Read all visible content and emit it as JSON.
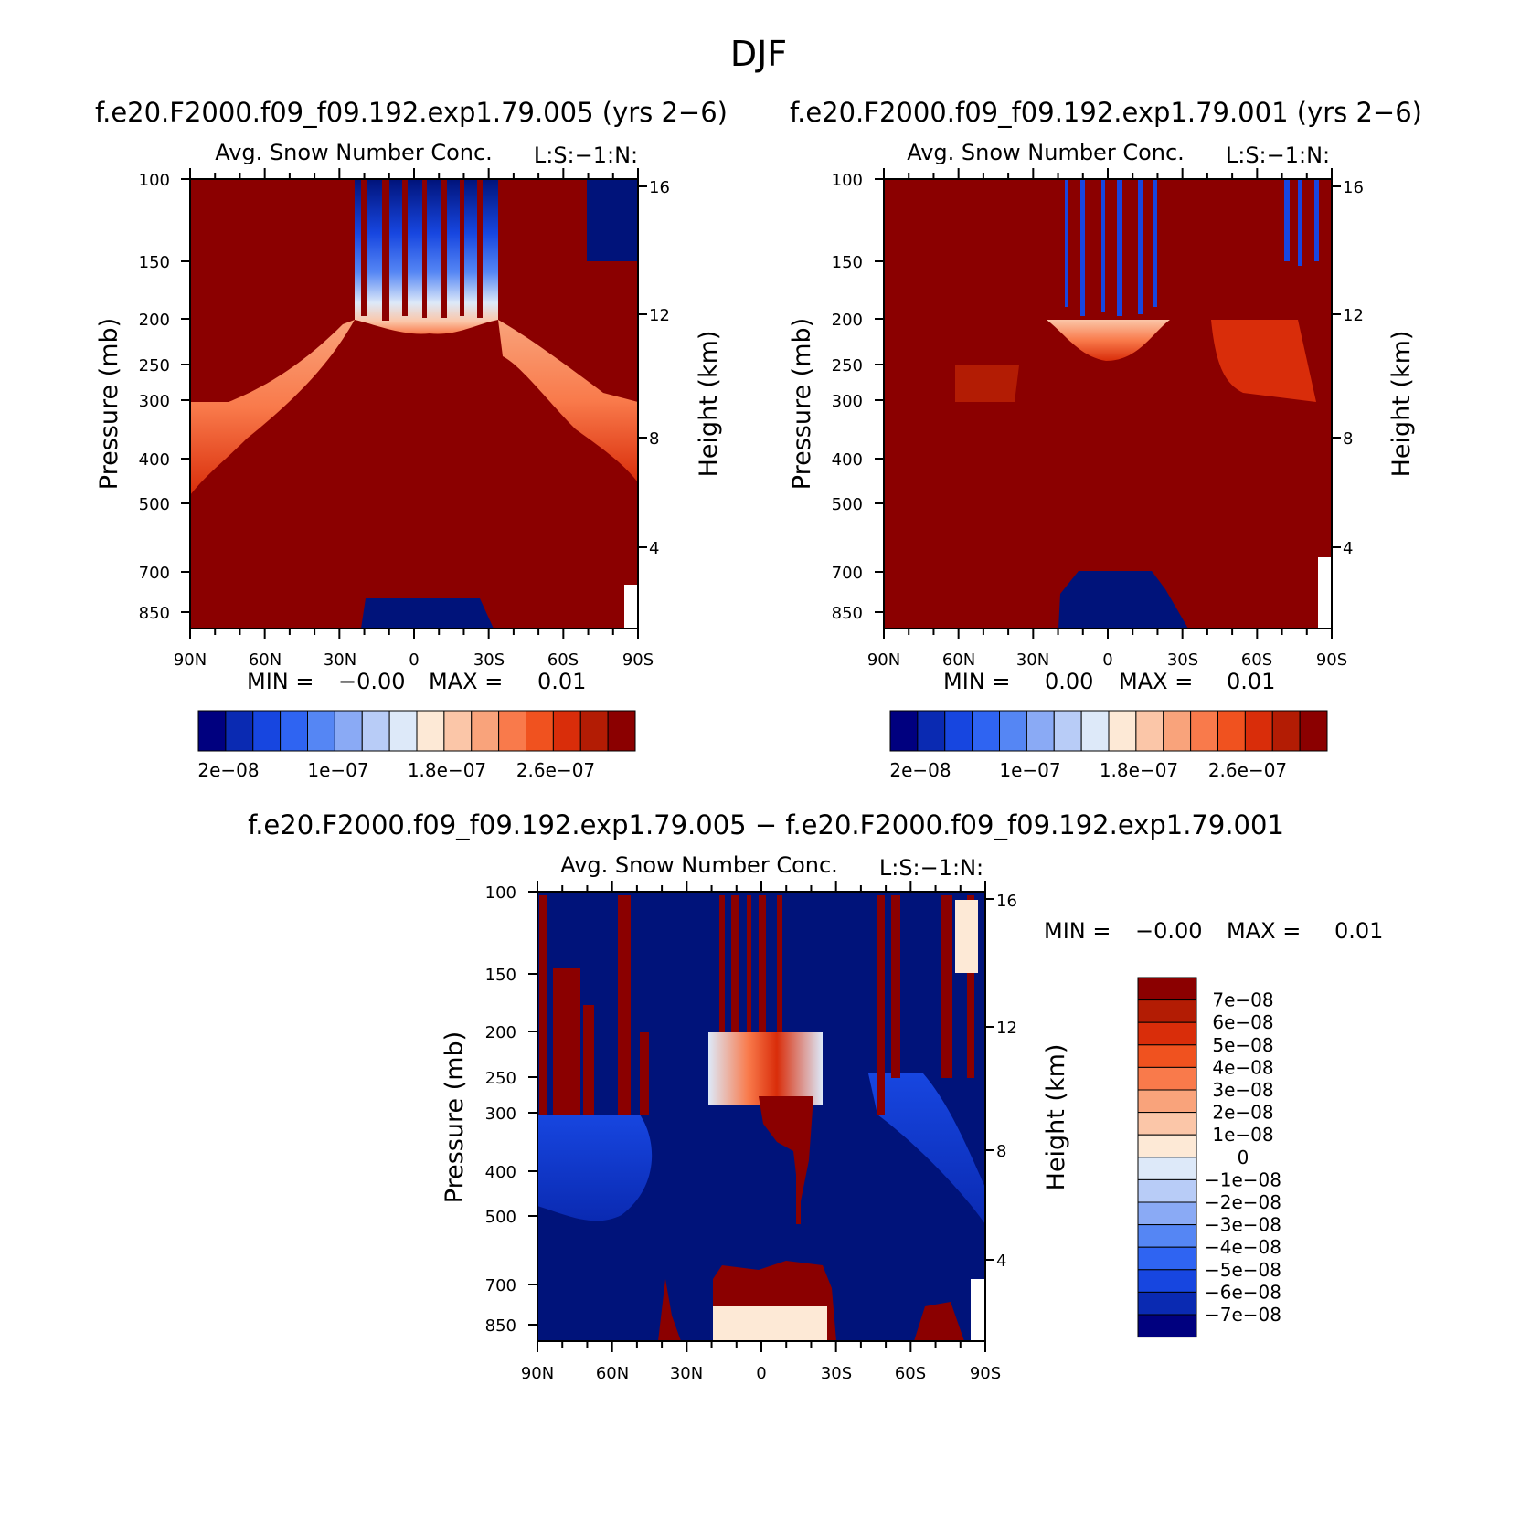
{
  "figure_title": "DJF",
  "chart_data": [
    {
      "type": "heatmap",
      "run_title": "f.e20.F2000.f09_f09.192.exp1.79.005 (yrs 2−6)",
      "title": "Avg. Snow Number Conc.",
      "units_label": "L:S:−1:N:",
      "ylabel": "Pressure (mb)",
      "y2label": "Height (km)",
      "x_ticks": [
        "90N",
        "60N",
        "30N",
        "0",
        "30S",
        "60S",
        "90S"
      ],
      "y_ticks": [
        "100",
        "150",
        "200",
        "250",
        "300",
        "400",
        "500",
        "700",
        "850"
      ],
      "y2_ticks": [
        "16",
        "12",
        "8",
        "4"
      ],
      "min_label": "MIN =",
      "min_value": "−0.00",
      "max_label": "MAX =",
      "max_value": "0.01",
      "colorbar_labels": [
        "2e−08",
        "1e−07",
        "1.8e−07",
        "2.6e−07"
      ]
    },
    {
      "type": "heatmap",
      "run_title": "f.e20.F2000.f09_f09.192.exp1.79.001 (yrs 2−6)",
      "title": "Avg. Snow Number Conc.",
      "units_label": "L:S:−1:N:",
      "ylabel": "Pressure (mb)",
      "y2label": "Height (km)",
      "x_ticks": [
        "90N",
        "60N",
        "30N",
        "0",
        "30S",
        "60S",
        "90S"
      ],
      "y_ticks": [
        "100",
        "150",
        "200",
        "250",
        "300",
        "400",
        "500",
        "700",
        "850"
      ],
      "y2_ticks": [
        "16",
        "12",
        "8",
        "4"
      ],
      "min_label": "MIN =",
      "min_value": "0.00",
      "max_label": "MAX =",
      "max_value": "0.01",
      "colorbar_labels": [
        "2e−08",
        "1e−07",
        "1.8e−07",
        "2.6e−07"
      ]
    },
    {
      "type": "heatmap",
      "run_title": "f.e20.F2000.f09_f09.192.exp1.79.005 − f.e20.F2000.f09_f09.192.exp1.79.001",
      "title": "Avg. Snow Number Conc.",
      "units_label": "L:S:−1:N:",
      "ylabel": "Pressure (mb)",
      "y2label": "Height (km)",
      "x_ticks": [
        "90N",
        "60N",
        "30N",
        "0",
        "30S",
        "60S",
        "90S"
      ],
      "y_ticks": [
        "100",
        "150",
        "200",
        "250",
        "300",
        "400",
        "500",
        "700",
        "850"
      ],
      "y2_ticks": [
        "16",
        "12",
        "8",
        "4"
      ],
      "min_label": "MIN =",
      "min_value": "−0.00",
      "max_label": "MAX =",
      "max_value": "0.01",
      "colorbar_labels": [
        "7e−08",
        "6e−08",
        "5e−08",
        "4e−08",
        "3e−08",
        "2e−08",
        "1e−08",
        "0",
        "−1e−08",
        "−2e−08",
        "−3e−08",
        "−4e−08",
        "−5e−08",
        "−6e−08",
        "−7e−08"
      ]
    }
  ],
  "colors": {
    "seq_scale": [
      "#00007f",
      "#0a2ab2",
      "#1746e0",
      "#2f64f2",
      "#5586f4",
      "#8aaaf5",
      "#b8ccf7",
      "#dde9f9",
      "#fde9d6",
      "#fbc6a8",
      "#f9a37b",
      "#f97a4b",
      "#f0521f",
      "#d92d0a",
      "#b31c04",
      "#8b0000"
    ],
    "diff_scale": [
      "#8b0000",
      "#b31c04",
      "#d92d0a",
      "#f0521f",
      "#f97a4b",
      "#f9a37b",
      "#fbc6a8",
      "#fde9d6",
      "#dde9f9",
      "#b8ccf7",
      "#8aaaf5",
      "#5586f4",
      "#2f64f2",
      "#1746e0",
      "#0a2ab2",
      "#00007f"
    ]
  }
}
